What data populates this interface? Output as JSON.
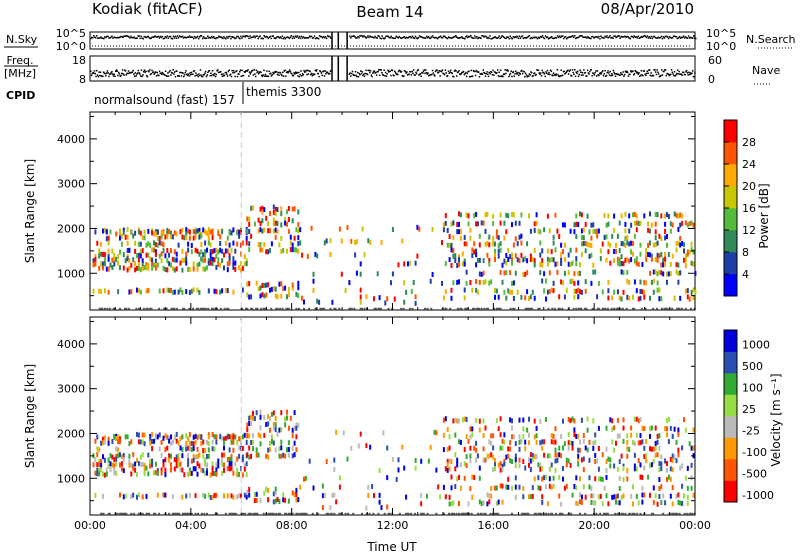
{
  "header": {
    "radar": "Kodiak (fitACF)",
    "beam": "Beam 14",
    "date": "08/Apr/2010"
  },
  "strips": {
    "nsky": {
      "label": "N.Sky",
      "ticks": [
        "10^5",
        "10^0"
      ]
    },
    "nsearch": {
      "label": "N.Search",
      "ticks": [
        "10^5",
        "10^0"
      ]
    },
    "freq": {
      "label_line1": "Freq.",
      "label_line2": "[MHz]",
      "ticks": [
        "18",
        "8"
      ]
    },
    "nave": {
      "label": "Nave",
      "ticks": [
        "60",
        "0"
      ]
    },
    "cpid": {
      "label": "CPID",
      "segments": [
        {
          "name": "normalsound (fast) 157",
          "start_hour": 0
        },
        {
          "name": "themis 3300",
          "start_hour": 6
        }
      ]
    }
  },
  "colors": {
    "power": [
      "#0000ff",
      "#1e3fa8",
      "#2e8b57",
      "#55bb3a",
      "#c8c800",
      "#ffaa00",
      "#ff5500",
      "#ff0000"
    ],
    "velocity": [
      "#ff0000",
      "#ff5500",
      "#ff9900",
      "#bbbbbb",
      "#99dd44",
      "#33aa33",
      "#2a4fb0",
      "#0000dd"
    ]
  },
  "chart_data": [
    {
      "type": "heatmap",
      "name": "power",
      "xlabel": "Time UT",
      "ylabel": "Slant Range [km]",
      "xlim": [
        0,
        24
      ],
      "ylim": [
        180,
        4600
      ],
      "x_ticks": [
        "00:00",
        "04:00",
        "08:00",
        "12:00",
        "16:00",
        "20:00",
        "00:00"
      ],
      "y_ticks": [
        1000,
        2000,
        3000,
        4000
      ],
      "colorbar": {
        "label": "Power [dB]",
        "boundaries": [
          0,
          4,
          8,
          12,
          16,
          20,
          24,
          28,
          32
        ],
        "tick_labels": [
          "4",
          "8",
          "12",
          "16",
          "20",
          "24",
          "28"
        ]
      }
    },
    {
      "type": "heatmap",
      "name": "velocity",
      "xlabel": "Time UT",
      "ylabel": "Slant Range [km]",
      "xlim": [
        0,
        24
      ],
      "ylim": [
        180,
        4600
      ],
      "x_ticks": [
        "00:00",
        "04:00",
        "08:00",
        "12:00",
        "16:00",
        "20:00",
        "00:00"
      ],
      "y_ticks": [
        1000,
        2000,
        3000,
        4000
      ],
      "colorbar": {
        "label": "Velocity [m s⁻¹]",
        "tick_labels": [
          "1000",
          "500",
          "100",
          "25",
          "-25",
          "-100",
          "-500",
          "-1000"
        ]
      }
    }
  ]
}
